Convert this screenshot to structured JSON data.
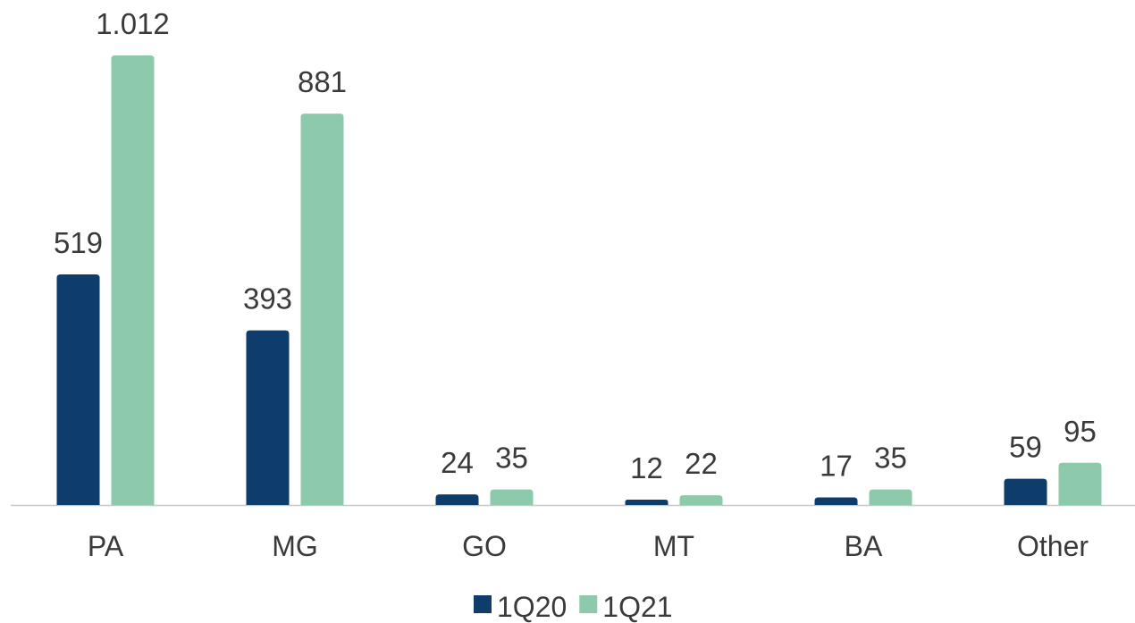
{
  "chart_data": {
    "type": "bar",
    "categories": [
      "PA",
      "MG",
      "GO",
      "MT",
      "BA",
      "Other"
    ],
    "series": [
      {
        "name": "1Q20",
        "color": "#0e3d6b",
        "values": [
          519,
          393,
          24,
          12,
          17,
          59
        ]
      },
      {
        "name": "1Q21",
        "color": "#8dcaac",
        "values": [
          1012,
          881,
          35,
          22,
          35,
          95
        ],
        "value_labels": [
          "1.012",
          "881",
          "35",
          "22",
          "35",
          "95"
        ]
      }
    ],
    "legend": "bottom"
  }
}
